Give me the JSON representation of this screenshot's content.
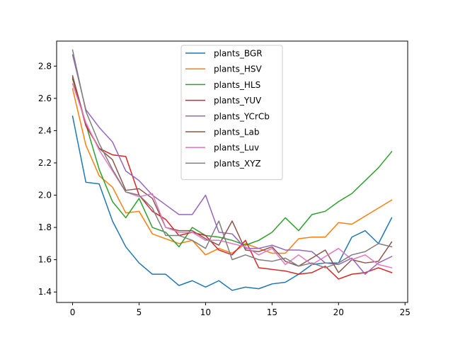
{
  "chart_data": {
    "type": "line",
    "title": "",
    "xlabel": "",
    "ylabel": "",
    "xlim": [
      -1.2,
      25.2
    ],
    "ylim": [
      1.335,
      2.955
    ],
    "xticks": [
      0,
      5,
      10,
      15,
      20,
      25
    ],
    "yticks": [
      1.4,
      1.6,
      1.8,
      2.0,
      2.2,
      2.4,
      2.6,
      2.8
    ],
    "legend": "upper-center",
    "x": [
      0,
      1,
      2,
      3,
      4,
      5,
      6,
      7,
      8,
      9,
      10,
      11,
      12,
      13,
      14,
      15,
      16,
      17,
      18,
      19,
      20,
      21,
      22,
      23,
      24
    ],
    "series": [
      {
        "name": "plants_BGR",
        "color": "#1f77b4",
        "values": [
          2.49,
          2.08,
          2.07,
          1.84,
          1.68,
          1.58,
          1.51,
          1.51,
          1.44,
          1.47,
          1.43,
          1.47,
          1.41,
          1.43,
          1.42,
          1.45,
          1.46,
          1.51,
          1.57,
          1.58,
          1.58,
          1.74,
          1.78,
          1.7,
          1.86
        ]
      },
      {
        "name": "plants_HSV",
        "color": "#ff7f0e",
        "values": [
          2.66,
          2.31,
          2.12,
          2.05,
          1.89,
          1.9,
          1.76,
          1.73,
          1.7,
          1.72,
          1.63,
          1.67,
          1.64,
          1.7,
          1.67,
          1.64,
          1.64,
          1.73,
          1.74,
          1.74,
          1.83,
          1.82,
          1.87,
          1.92,
          1.97
        ]
      },
      {
        "name": "plants_HLS",
        "color": "#2ca02c",
        "values": [
          2.72,
          2.44,
          2.16,
          1.96,
          1.86,
          1.98,
          1.8,
          1.77,
          1.68,
          1.8,
          1.75,
          1.74,
          1.72,
          1.69,
          1.72,
          1.77,
          1.86,
          1.78,
          1.88,
          1.9,
          1.96,
          2.01,
          2.09,
          2.17,
          2.27
        ]
      },
      {
        "name": "plants_YUV",
        "color": "#d62728",
        "values": [
          2.73,
          2.43,
          2.29,
          2.25,
          2.24,
          2.0,
          1.9,
          1.85,
          1.75,
          1.77,
          1.75,
          1.66,
          1.63,
          1.72,
          1.55,
          1.54,
          1.53,
          1.51,
          1.52,
          1.56,
          1.48,
          1.51,
          1.52,
          1.55,
          1.52
        ]
      },
      {
        "name": "plants_YCrCb",
        "color": "#9467bd",
        "values": [
          2.87,
          2.53,
          2.42,
          2.33,
          2.15,
          2.09,
          2.0,
          1.94,
          1.88,
          1.88,
          2.0,
          1.77,
          1.76,
          1.67,
          1.67,
          1.69,
          1.66,
          1.66,
          1.65,
          1.58,
          1.57,
          1.61,
          1.51,
          1.58,
          1.62
        ]
      },
      {
        "name": "plants_Lab",
        "color": "#8c564b",
        "values": [
          2.74,
          2.44,
          2.29,
          2.22,
          2.03,
          2.04,
          1.98,
          1.8,
          1.78,
          1.78,
          1.73,
          1.69,
          1.84,
          1.66,
          1.65,
          1.68,
          1.59,
          1.56,
          1.61,
          1.66,
          1.52,
          1.6,
          1.58,
          1.59,
          1.71
        ]
      },
      {
        "name": "plants_Luv",
        "color": "#e377c2",
        "values": [
          2.69,
          2.45,
          2.28,
          2.15,
          2.02,
          1.99,
          2.01,
          1.8,
          1.77,
          1.77,
          1.72,
          1.72,
          1.7,
          1.68,
          1.63,
          1.67,
          1.57,
          1.63,
          1.57,
          1.62,
          1.67,
          1.6,
          1.63,
          1.57,
          1.55
        ]
      },
      {
        "name": "plants_XYZ",
        "color": "#7f7f7f",
        "values": [
          2.9,
          2.52,
          2.32,
          2.16,
          2.02,
          2.0,
          1.92,
          1.75,
          1.75,
          1.72,
          1.67,
          1.84,
          1.6,
          1.63,
          1.6,
          1.59,
          1.61,
          1.56,
          1.58,
          1.55,
          1.58,
          1.63,
          1.65,
          1.7,
          1.68
        ]
      }
    ]
  }
}
